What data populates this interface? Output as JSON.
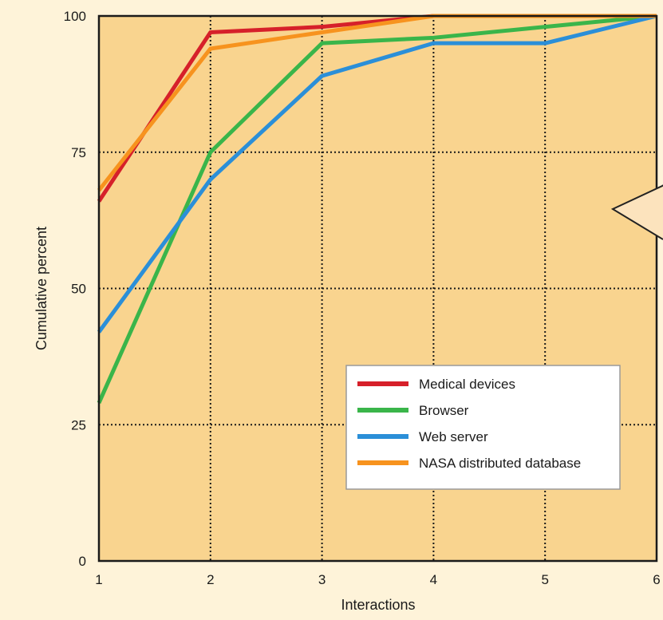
{
  "chart_data": {
    "type": "line",
    "title": "",
    "xlabel": "Interactions",
    "ylabel": "Cumulative percent",
    "x": [
      1,
      2,
      3,
      4,
      5,
      6
    ],
    "x_ticks": [
      "1",
      "2",
      "3",
      "4",
      "5",
      "6"
    ],
    "y_ticks": [
      "0",
      "25",
      "50",
      "75",
      "100"
    ],
    "xlim": [
      1,
      6
    ],
    "ylim": [
      0,
      100
    ],
    "grid": true,
    "grid_style": "dotted",
    "legend_position": "lower-right",
    "plot_background": "#f9d48f",
    "page_background": "#fef3d9",
    "series": [
      {
        "name": "Medical devices",
        "color": "#d6202a",
        "values": [
          66,
          97,
          98,
          100,
          100,
          100
        ]
      },
      {
        "name": "Browser",
        "color": "#3ab54a",
        "values": [
          29,
          75,
          95,
          96,
          98,
          100
        ]
      },
      {
        "name": "Web server",
        "color": "#2b8fd8",
        "values": [
          42,
          70,
          89,
          95,
          95,
          100
        ]
      },
      {
        "name": "NASA distributed database",
        "color": "#f7931e",
        "values": [
          68,
          94,
          97,
          100,
          100,
          100
        ]
      }
    ],
    "annotation": {
      "type": "callout-pointer",
      "fill": "#fce3bd"
    }
  }
}
